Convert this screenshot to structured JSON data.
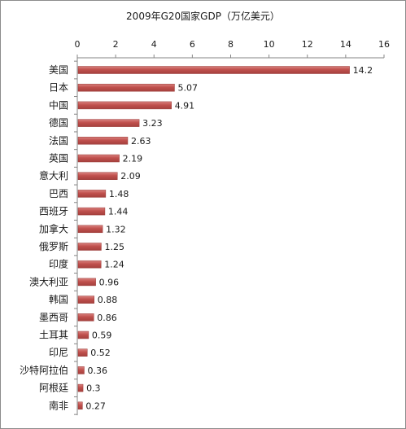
{
  "chart_data": {
    "type": "bar",
    "orientation": "horizontal",
    "title": "2009年G20国家GDP（万亿美元）",
    "xlabel": "",
    "ylabel": "",
    "x_axis_position": "top",
    "xlim": [
      0,
      16
    ],
    "x_ticks": [
      "0",
      "2",
      "4",
      "6",
      "8",
      "10",
      "12",
      "14",
      "16"
    ],
    "categories": [
      "美国",
      "日本",
      "中国",
      "德国",
      "法国",
      "英国",
      "意大利",
      "巴西",
      "西班牙",
      "加拿大",
      "俄罗斯",
      "印度",
      "澳大利亚",
      "韩国",
      "墨西哥",
      "土耳其",
      "印尼",
      "沙特阿拉伯",
      "阿根廷",
      "南非"
    ],
    "values": [
      14.2,
      5.07,
      4.91,
      3.23,
      2.63,
      2.19,
      2.09,
      1.48,
      1.44,
      1.32,
      1.25,
      1.24,
      0.96,
      0.88,
      0.86,
      0.59,
      0.52,
      0.36,
      0.3,
      0.27
    ],
    "value_labels": [
      "14.2",
      "5.07",
      "4.91",
      "3.23",
      "2.63",
      "2.19",
      "2.09",
      "1.48",
      "1.44",
      "1.32",
      "1.25",
      "1.24",
      "0.96",
      "0.88",
      "0.86",
      "0.59",
      "0.52",
      "0.36",
      "0.3",
      "0.27"
    ],
    "grid": false,
    "legend": "none",
    "colors": {
      "bar_fill": "#c0504d",
      "bar_highlight": "#d9827f",
      "axis": "#868686",
      "text": "#1a1a1a"
    }
  }
}
